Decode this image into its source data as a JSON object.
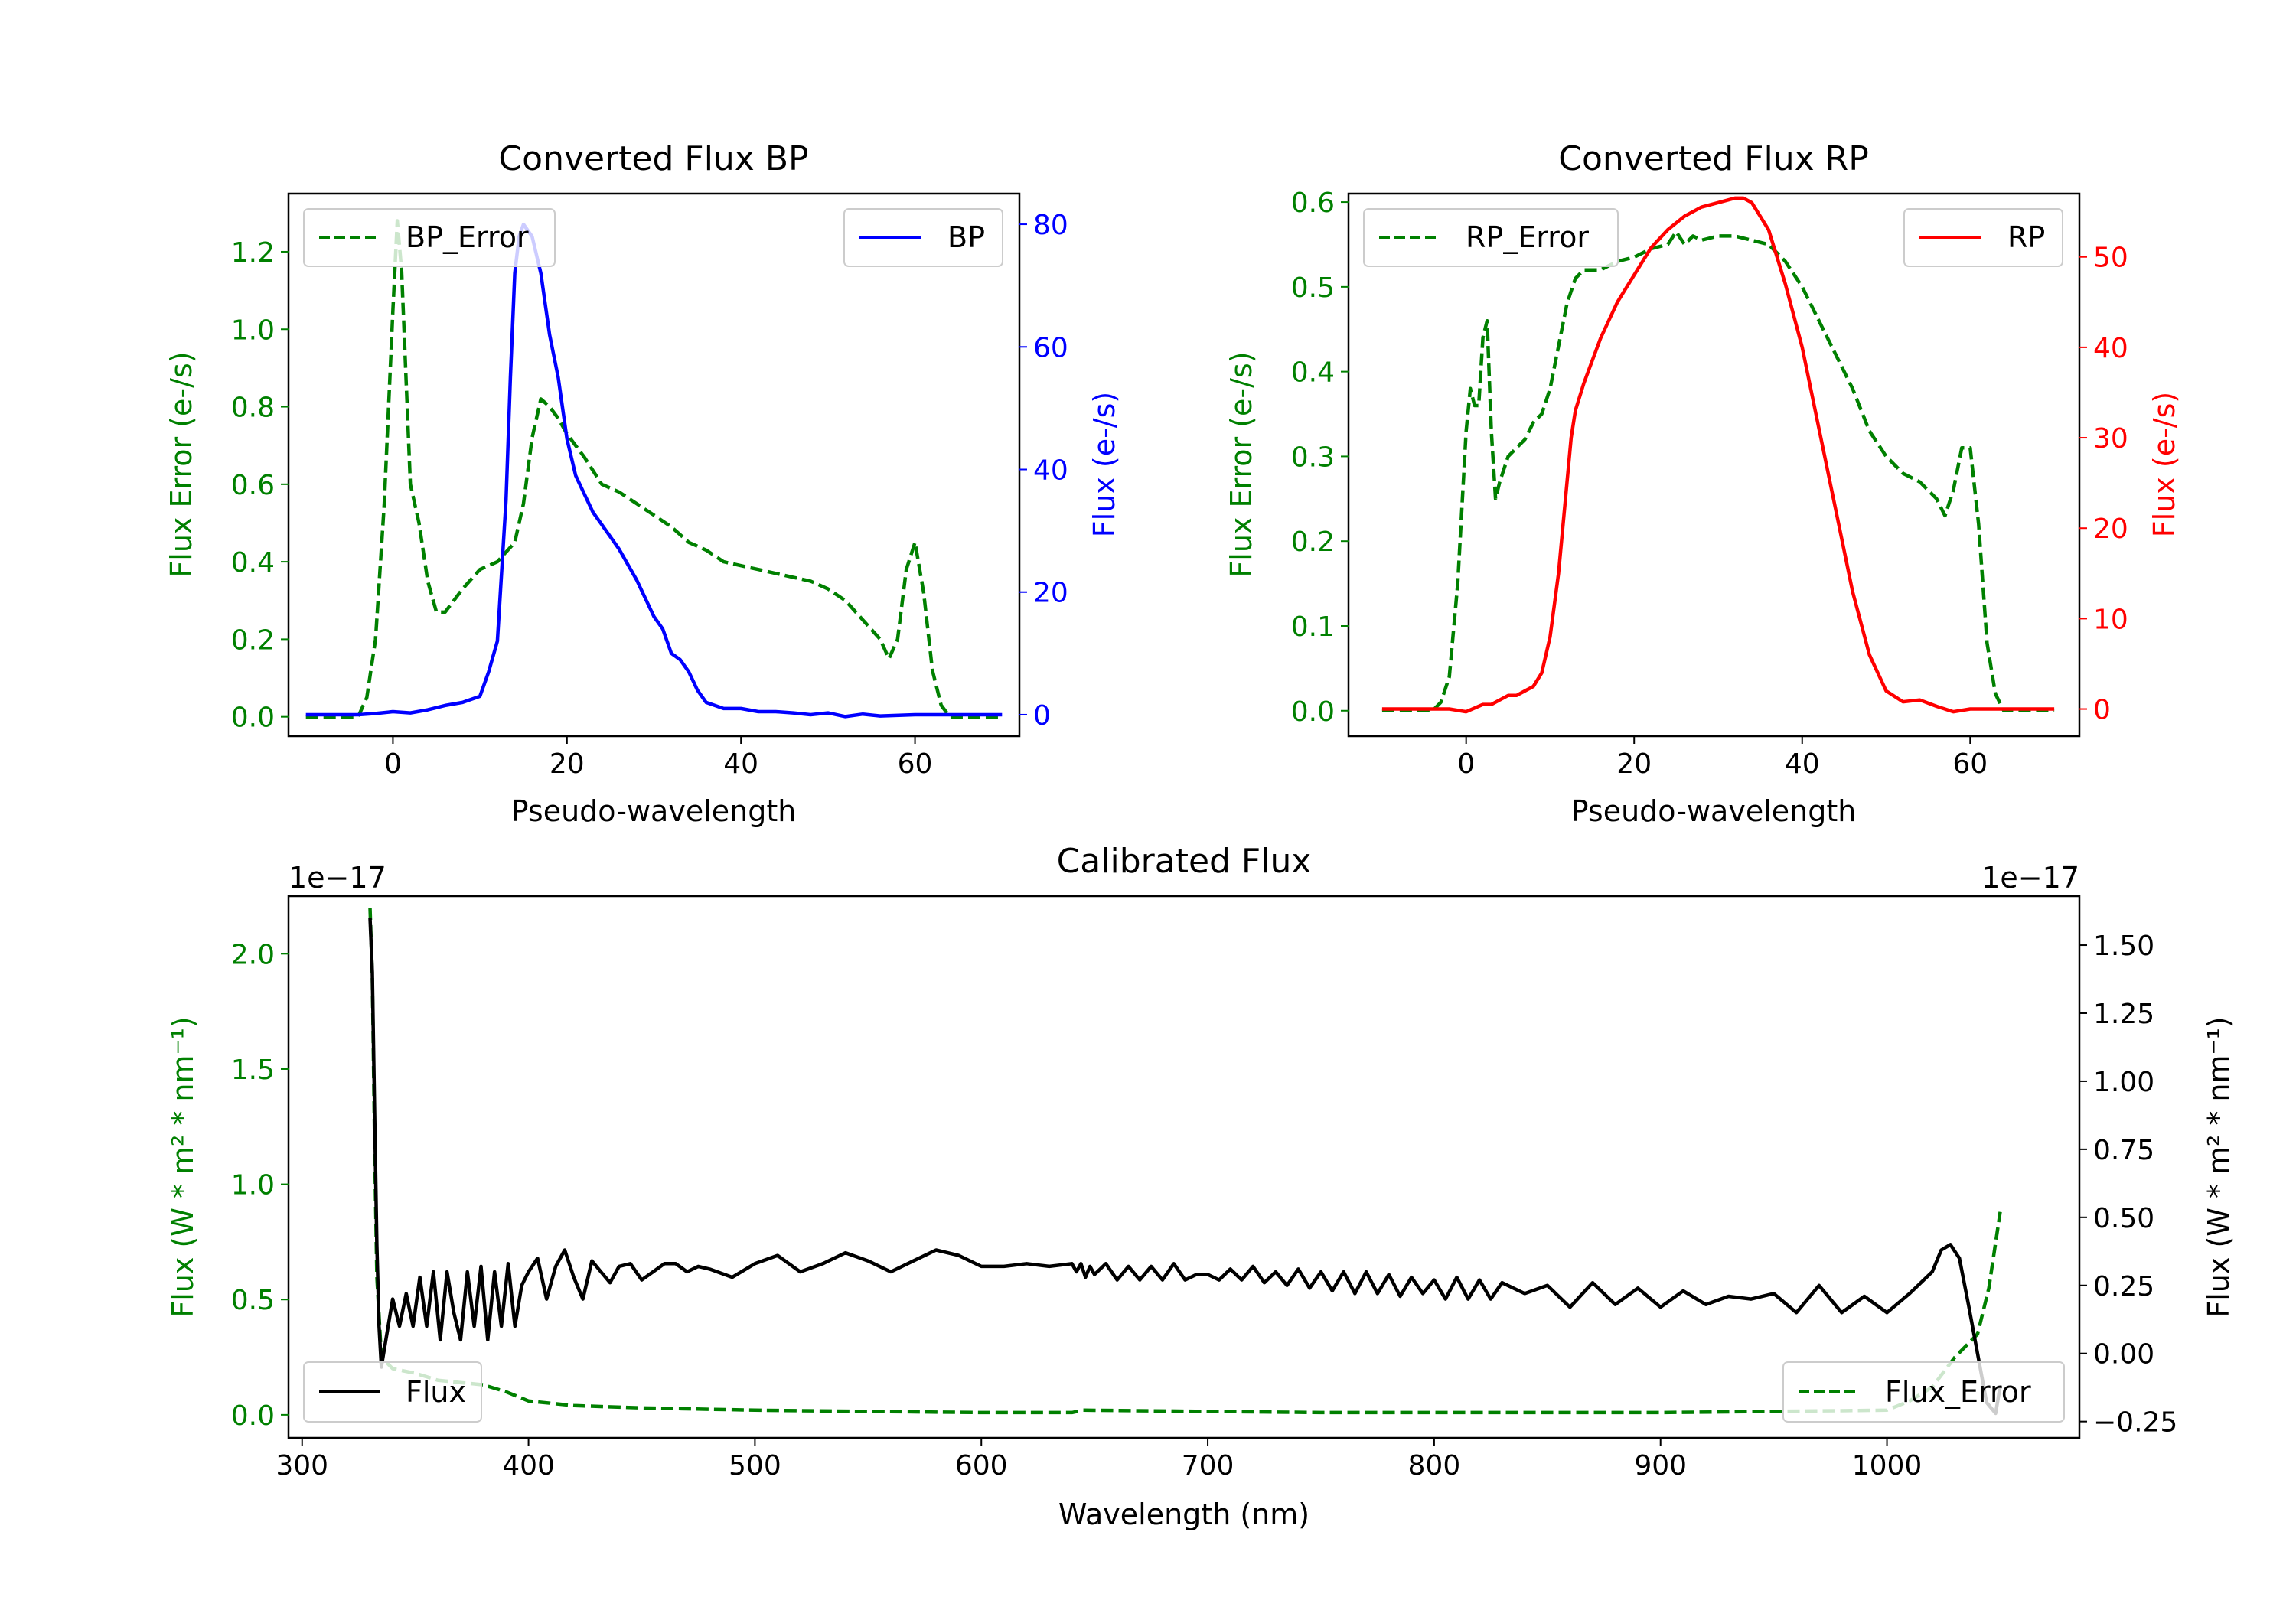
{
  "chart_data": [
    {
      "type": "line",
      "title": "Converted Flux BP",
      "xlabel": "Pseudo-wavelength",
      "ylabel_left": "Flux Error (e-/s)",
      "ylabel_right": "Flux (e-/s)",
      "xlim": [
        -12,
        72
      ],
      "ylim_left": [
        -0.05,
        1.35
      ],
      "ylim_right": [
        -3.5,
        85
      ],
      "xticks": [
        0,
        20,
        40,
        60
      ],
      "yticks_left": [
        0.0,
        0.2,
        0.4,
        0.6,
        0.8,
        1.0,
        1.2
      ],
      "yticks_right": [
        0,
        20,
        40,
        60,
        80
      ],
      "legend_left": "BP_Error",
      "legend_right": "BP",
      "colors": {
        "error": "#008000",
        "flux": "#0000ff",
        "left_axis": "#008000",
        "right_axis": "#0000ff"
      },
      "series": [
        {
          "name": "BP_Error",
          "axis": "left",
          "style": "dashed",
          "x": [
            -10,
            -4,
            -3,
            -2,
            -1,
            0,
            0.5,
            1,
            2,
            3,
            4,
            5,
            6,
            7,
            8,
            10,
            12,
            14,
            15,
            16,
            17,
            18,
            19,
            20,
            22,
            24,
            26,
            28,
            30,
            32,
            34,
            36,
            38,
            40,
            42,
            44,
            46,
            48,
            50,
            52,
            54,
            56,
            57,
            58,
            59,
            60,
            61,
            62,
            63,
            64,
            65,
            70
          ],
          "y": [
            0,
            0,
            0.05,
            0.2,
            0.55,
            1.05,
            1.28,
            1.15,
            0.6,
            0.5,
            0.35,
            0.27,
            0.27,
            0.3,
            0.33,
            0.38,
            0.4,
            0.45,
            0.55,
            0.72,
            0.82,
            0.8,
            0.77,
            0.73,
            0.67,
            0.6,
            0.58,
            0.55,
            0.52,
            0.49,
            0.45,
            0.43,
            0.4,
            0.39,
            0.38,
            0.37,
            0.36,
            0.35,
            0.33,
            0.3,
            0.25,
            0.2,
            0.15,
            0.2,
            0.38,
            0.45,
            0.32,
            0.12,
            0.03,
            0.0,
            0.0,
            0.0
          ]
        },
        {
          "name": "BP",
          "axis": "right",
          "style": "solid",
          "x": [
            -10,
            -4,
            -2,
            0,
            2,
            4,
            6,
            8,
            10,
            11,
            12,
            13,
            13.5,
            14,
            14.5,
            15,
            15.5,
            16,
            17,
            18,
            19,
            20,
            21,
            22,
            23,
            24,
            26,
            28,
            30,
            31,
            32,
            33,
            34,
            35,
            36,
            38,
            40,
            42,
            44,
            46,
            48,
            50,
            52,
            54,
            56,
            60,
            65,
            70
          ],
          "y": [
            0,
            0,
            0.2,
            0.5,
            0.3,
            0.8,
            1.5,
            2,
            3,
            7,
            12,
            35,
            55,
            72,
            78,
            80,
            79,
            78,
            72,
            62,
            55,
            45,
            39,
            36,
            33,
            31,
            27,
            22,
            16,
            14,
            10,
            9,
            7,
            4,
            2,
            1,
            1,
            0.5,
            0.5,
            0.3,
            0,
            0.3,
            -0.3,
            0.1,
            -0.2,
            0,
            0,
            0
          ]
        }
      ]
    },
    {
      "type": "line",
      "title": "Converted Flux RP",
      "xlabel": "Pseudo-wavelength",
      "ylabel_left": "Flux Error (e-/s)",
      "ylabel_right": "Flux (e-/s)",
      "xlim": [
        -14,
        73
      ],
      "ylim_left": [
        -0.03,
        0.61
      ],
      "ylim_right": [
        -3,
        57
      ],
      "xticks": [
        0,
        20,
        40,
        60
      ],
      "yticks_left": [
        0.0,
        0.1,
        0.2,
        0.3,
        0.4,
        0.5,
        0.6
      ],
      "yticks_right": [
        0,
        10,
        20,
        30,
        40,
        50
      ],
      "legend_left": "RP_Error",
      "legend_right": "RP",
      "colors": {
        "error": "#008000",
        "flux": "#ff0000",
        "left_axis": "#008000",
        "right_axis": "#ff0000"
      },
      "series": [
        {
          "name": "RP_Error",
          "axis": "left",
          "style": "dashed",
          "x": [
            -10,
            -4,
            -3,
            -2,
            -1,
            0,
            0.5,
            1,
            1.5,
            2,
            2.5,
            3,
            3.5,
            4,
            5,
            6,
            7,
            8,
            9,
            10,
            11,
            12,
            13,
            14,
            16,
            18,
            20,
            22,
            24,
            25,
            26,
            27,
            28,
            30,
            32,
            34,
            36,
            38,
            40,
            42,
            44,
            46,
            48,
            50,
            52,
            54,
            55,
            56,
            57,
            58,
            59,
            60,
            61,
            62,
            63,
            64,
            65,
            70
          ],
          "y": [
            0,
            0,
            0.01,
            0.04,
            0.15,
            0.33,
            0.38,
            0.36,
            0.36,
            0.44,
            0.46,
            0.33,
            0.25,
            0.27,
            0.3,
            0.31,
            0.32,
            0.34,
            0.35,
            0.38,
            0.43,
            0.48,
            0.51,
            0.52,
            0.52,
            0.53,
            0.535,
            0.545,
            0.55,
            0.565,
            0.55,
            0.56,
            0.555,
            0.56,
            0.56,
            0.555,
            0.55,
            0.53,
            0.5,
            0.46,
            0.42,
            0.38,
            0.33,
            0.3,
            0.28,
            0.27,
            0.26,
            0.25,
            0.23,
            0.26,
            0.31,
            0.31,
            0.22,
            0.08,
            0.02,
            0.0,
            0.0,
            0.0
          ]
        },
        {
          "name": "RP",
          "axis": "right",
          "style": "solid",
          "x": [
            -10,
            -4,
            -2,
            0,
            2,
            3,
            4,
            5,
            6,
            7,
            8,
            9,
            10,
            11,
            12,
            12.5,
            13,
            14,
            16,
            18,
            20,
            22,
            24,
            26,
            28,
            30,
            32,
            33,
            34,
            36,
            38,
            40,
            42,
            44,
            46,
            48,
            50,
            52,
            54,
            56,
            58,
            60,
            65,
            70
          ],
          "y": [
            0,
            0,
            0,
            -0.3,
            0.5,
            0.5,
            1,
            1.5,
            1.5,
            2,
            2.5,
            4,
            8,
            15,
            25,
            30,
            33,
            36,
            41,
            45,
            48,
            51,
            53,
            54.5,
            55.5,
            56,
            56.5,
            56.5,
            56,
            53,
            47,
            40,
            31,
            22,
            13,
            6,
            2,
            0.8,
            1,
            0.3,
            -0.3,
            0,
            0,
            0
          ]
        }
      ]
    },
    {
      "type": "line",
      "title": "Calibrated Flux",
      "xlabel": "Wavelength (nm)",
      "ylabel_left": "Flux (W * m² * nm⁻¹)",
      "ylabel_right": "Flux (W * m² * nm⁻¹)",
      "xlim": [
        294,
        1085
      ],
      "ylim_left": [
        -0.1,
        2.25
      ],
      "ylim_right": [
        -0.31,
        1.68
      ],
      "xticks": [
        300,
        400,
        500,
        600,
        700,
        800,
        900,
        1000
      ],
      "yticks_left": [
        0.0,
        0.5,
        1.0,
        1.5,
        2.0
      ],
      "yticks_right": [
        -0.25,
        0.0,
        0.25,
        0.5,
        0.75,
        1.0,
        1.25,
        1.5
      ],
      "offset_left": "1e−17",
      "offset_right": "1e−17",
      "legend_left": "Flux",
      "legend_right": "Flux_Error",
      "colors": {
        "error": "#008000",
        "flux": "#000000",
        "left_axis": "#008000",
        "right_axis": "#000000"
      },
      "series": [
        {
          "name": "Flux_Error",
          "axis": "left",
          "style": "dashed",
          "x": [
            330,
            331,
            332,
            333,
            335,
            340,
            350,
            360,
            370,
            380,
            390,
            400,
            420,
            450,
            500,
            550,
            600,
            640,
            645,
            700,
            750,
            800,
            900,
            1000,
            1010,
            1020,
            1030,
            1040,
            1045,
            1050
          ],
          "y": [
            2.2,
            1.9,
            1.2,
            0.6,
            0.25,
            0.2,
            0.18,
            0.15,
            0.14,
            0.13,
            0.1,
            0.06,
            0.04,
            0.03,
            0.02,
            0.015,
            0.01,
            0.01,
            0.02,
            0.015,
            0.01,
            0.01,
            0.01,
            0.02,
            0.06,
            0.12,
            0.25,
            0.35,
            0.55,
            0.88
          ]
        },
        {
          "name": "Flux",
          "axis": "right",
          "style": "solid",
          "x": [
            330,
            331,
            332,
            333,
            334,
            335,
            337,
            340,
            343,
            346,
            349,
            352,
            355,
            358,
            361,
            364,
            367,
            370,
            373,
            376,
            379,
            382,
            385,
            388,
            391,
            394,
            397,
            400,
            404,
            408,
            412,
            416,
            420,
            424,
            428,
            432,
            436,
            440,
            445,
            450,
            455,
            460,
            465,
            470,
            475,
            480,
            490,
            500,
            510,
            520,
            530,
            540,
            550,
            560,
            570,
            580,
            590,
            600,
            610,
            620,
            630,
            640,
            642,
            644,
            646,
            648,
            650,
            655,
            660,
            665,
            670,
            675,
            680,
            685,
            690,
            695,
            700,
            705,
            710,
            715,
            720,
            725,
            730,
            735,
            740,
            745,
            750,
            755,
            760,
            765,
            770,
            775,
            780,
            785,
            790,
            795,
            800,
            805,
            810,
            815,
            820,
            825,
            830,
            840,
            850,
            860,
            870,
            880,
            890,
            900,
            910,
            920,
            930,
            940,
            950,
            960,
            970,
            980,
            990,
            1000,
            1010,
            1020,
            1024,
            1028,
            1032,
            1036,
            1040,
            1044,
            1048,
            1050
          ],
          "y": [
            1.6,
            1.4,
            0.9,
            0.4,
            0.1,
            -0.05,
            0.05,
            0.2,
            0.1,
            0.22,
            0.1,
            0.28,
            0.1,
            0.3,
            0.05,
            0.3,
            0.15,
            0.05,
            0.3,
            0.1,
            0.32,
            0.05,
            0.3,
            0.1,
            0.33,
            0.1,
            0.25,
            0.3,
            0.35,
            0.2,
            0.32,
            0.38,
            0.28,
            0.2,
            0.34,
            0.3,
            0.26,
            0.32,
            0.33,
            0.27,
            0.3,
            0.33,
            0.33,
            0.3,
            0.32,
            0.31,
            0.28,
            0.33,
            0.36,
            0.3,
            0.33,
            0.37,
            0.34,
            0.3,
            0.34,
            0.38,
            0.36,
            0.32,
            0.32,
            0.33,
            0.32,
            0.33,
            0.3,
            0.33,
            0.28,
            0.32,
            0.29,
            0.33,
            0.27,
            0.32,
            0.27,
            0.32,
            0.27,
            0.33,
            0.27,
            0.29,
            0.29,
            0.27,
            0.31,
            0.27,
            0.32,
            0.26,
            0.3,
            0.25,
            0.31,
            0.24,
            0.3,
            0.23,
            0.3,
            0.22,
            0.3,
            0.22,
            0.29,
            0.21,
            0.28,
            0.22,
            0.27,
            0.2,
            0.28,
            0.2,
            0.27,
            0.2,
            0.26,
            0.22,
            0.25,
            0.17,
            0.26,
            0.18,
            0.24,
            0.17,
            0.23,
            0.18,
            0.21,
            0.2,
            0.22,
            0.15,
            0.25,
            0.15,
            0.21,
            0.15,
            0.22,
            0.3,
            0.38,
            0.4,
            0.35,
            0.18,
            0.0,
            -0.18,
            -0.22,
            -0.12
          ]
        }
      ]
    }
  ]
}
